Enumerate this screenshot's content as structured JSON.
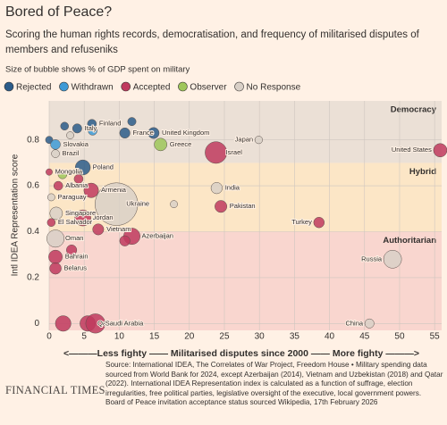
{
  "chart_data": {
    "type": "bubble",
    "title": "Bored of Peace?",
    "subtitle": "Scoring the human rights records, democratisation, and frequency of militarised disputes of members and refuseniks",
    "size_note": "Size of bubble shows % of GDP spent on military",
    "x_label": "<———Less fighty —— Militarised disputes since 2000 —— More fighty ———>",
    "y_label": "Intl IDEA Representation score",
    "xlim": [
      0,
      56
    ],
    "ylim": [
      -0.03,
      0.97
    ],
    "xticks": [
      0,
      5,
      10,
      15,
      20,
      25,
      30,
      35,
      40,
      45,
      50,
      55
    ],
    "yticks": [
      0,
      0.2,
      0.4,
      0.6,
      0.8
    ],
    "grid": true,
    "bands": [
      {
        "label": "Authoritarian",
        "from": -0.03,
        "color": "#f9d6cf"
      },
      {
        "label": "Hybrid",
        "from": 0.4,
        "color": "#fce6c6"
      },
      {
        "label": "Democracy",
        "from": 0.7,
        "color": "#ebe0d6"
      }
    ],
    "series": [
      {
        "name": "Rejected",
        "color": "#2b5c8a",
        "x": [
          0,
          2.2,
          6.1,
          11.8,
          10.8,
          14.9,
          4.8,
          4
        ],
        "values": [
          0.8,
          0.86,
          0.87,
          0.88,
          0.83,
          0.83,
          0.68,
          0.85
        ],
        "sizes": [
          1,
          1.2,
          1.5,
          1.3,
          2,
          2.3,
          4.2,
          1.6
        ],
        "labels": [
          null,
          null,
          "Finland",
          null,
          "France",
          "United Kingdom",
          "Poland",
          "Italy"
        ]
      },
      {
        "name": "Withdrawn",
        "color": "#3d9ad6",
        "x": [
          0.9,
          6.2
        ],
        "values": [
          0.78,
          0.84
        ],
        "sizes": [
          1.8,
          1.5
        ],
        "labels": [
          "Slovakia",
          null
        ]
      },
      {
        "name": "Accepted",
        "color": "#c0395e",
        "x": [
          23.8,
          55.8,
          0,
          1.3,
          4.2,
          6,
          4.8,
          0.3,
          38.5,
          24.5,
          7,
          11.8,
          10.8,
          0.9,
          0.9,
          3.2,
          2,
          5.5,
          6.6
        ],
        "values": [
          0.745,
          0.755,
          0.66,
          0.6,
          0.63,
          0.58,
          0.46,
          0.44,
          0.44,
          0.51,
          0.41,
          0.38,
          0.36,
          0.29,
          0.24,
          0.32,
          0,
          0,
          0
        ],
        "sizes": [
          8.8,
          3.4,
          0.8,
          1.5,
          1.5,
          4,
          4.8,
          1.2,
          2.1,
          2.7,
          2.3,
          5,
          2,
          3.5,
          2.5,
          2,
          4.5,
          4.5,
          7
        ],
        "labels": [
          "Israel",
          "United States",
          "Mongolia",
          "Albania",
          null,
          "Armenia",
          "Jordan",
          "El Salvador",
          "Turkey",
          "Pakistan",
          "Vietnam",
          "Azerbaijan",
          null,
          "Bahrain",
          "Belarus",
          null,
          null,
          "Qatar",
          "Saudi Arabia"
        ]
      },
      {
        "name": "Observer",
        "color": "#9ec65a",
        "x": [
          15.9,
          1.9
        ],
        "values": [
          0.78,
          0.65
        ],
        "sizes": [
          3,
          1.5
        ],
        "labels": [
          "Greece",
          null
        ]
      },
      {
        "name": "No Response",
        "color": "#d9d0c7",
        "x": [
          29.9,
          0.9,
          3,
          0.3,
          1,
          0.9,
          9.6,
          23.9,
          17.8,
          49,
          45.7
        ],
        "values": [
          0.8,
          0.74,
          0.82,
          0.55,
          0.48,
          0.37,
          0.52,
          0.59,
          0.52,
          0.28,
          0
        ],
        "sizes": [
          1.1,
          1.2,
          1,
          1,
          3,
          5.6,
          34,
          2.4,
          1,
          6,
          1.6
        ],
        "labels": [
          "Japan",
          "Brazil",
          null,
          "Paraguay",
          "Singapore",
          "Oman",
          "Ukraine",
          "India",
          null,
          "Russia",
          "China"
        ]
      }
    ],
    "source": "Source: International IDEA, The Correlates of War Project, Freedom House • Military spending data sourced from World Bank for 2024, except Azerbaijan (2014), Vietnam and Uzbekistan (2018) and Qatar (2022). International IDEA Representation index is calculated as a function of suffrage, election irregularities, free political parties, legislative oversight of the executive, local government powers.",
    "source_note": "Board of Peace invitation acceptance status sourced Wikipedia, 17th February 2026",
    "brand": "FINANCIAL TIMES"
  }
}
